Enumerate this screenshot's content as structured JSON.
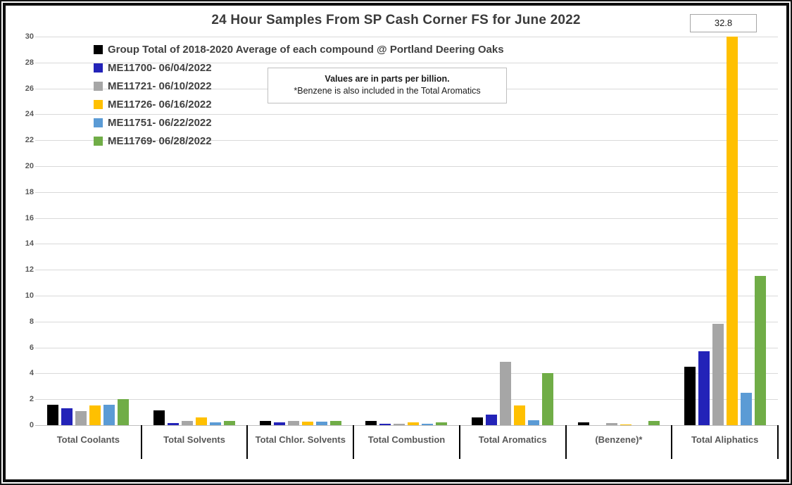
{
  "title": "24 Hour Samples From SP Cash Corner FS for June 2022",
  "note": {
    "line1": "Values are in parts per billion.",
    "line2": "*Benzene is also included in the Total Aromatics"
  },
  "annotation": {
    "label": "32.8",
    "category": "Total Aliphatics",
    "series": "ME11726- 06/16/2022"
  },
  "colors": {
    "grid": "#d9d9d9",
    "axis": "#bfbfbf",
    "separator": "#000000",
    "text_primary": "#404040",
    "text_secondary": "#595959"
  },
  "chart_data": {
    "type": "bar",
    "title": "24 Hour Samples From SP Cash Corner FS for June 2022",
    "categories": [
      "Total Coolants",
      "Total Solvents",
      "Total Chlor. Solvents",
      "Total Combustion",
      "Total Aromatics",
      "(Benzene)*",
      "Total Aliphatics"
    ],
    "series": [
      {
        "name": "Group Total of 2018-2020 Average of each compound @ Portland Deering Oaks",
        "color": "#000000",
        "values": [
          1.6,
          1.15,
          0.35,
          0.3,
          0.6,
          0.2,
          4.5
        ]
      },
      {
        "name": "ME11700- 06/04/2022",
        "color": "#2323b8",
        "values": [
          1.3,
          0.15,
          0.2,
          0.1,
          0.8,
          0,
          5.7
        ]
      },
      {
        "name": "ME11721- 06/10/2022",
        "color": "#a6a6a6",
        "values": [
          1.1,
          0.3,
          0.35,
          0.1,
          4.9,
          0.15,
          7.8
        ]
      },
      {
        "name": "ME11726- 06/16/2022",
        "color": "#ffc000",
        "values": [
          1.5,
          0.6,
          0.25,
          0.2,
          1.5,
          0.08,
          32.8
        ]
      },
      {
        "name": "ME11751- 06/22/2022",
        "color": "#5b9bd5",
        "values": [
          1.6,
          0.2,
          0.25,
          0.1,
          0.4,
          0,
          2.5
        ]
      },
      {
        "name": "ME11769- 06/28/2022",
        "color": "#70ad47",
        "values": [
          2.0,
          0.3,
          0.3,
          0.2,
          4.0,
          0.3,
          11.5
        ]
      }
    ],
    "ylim": [
      0,
      30
    ],
    "y_tick_step": 2,
    "y_ticks": [
      0,
      2,
      4,
      6,
      8,
      10,
      12,
      14,
      16,
      18,
      20,
      22,
      24,
      26,
      28,
      30
    ],
    "xlabel": "",
    "ylabel": "",
    "grid": true,
    "legend_position": "top-left",
    "annotations": [
      {
        "text": "32.8",
        "category": "Total Aliphatics",
        "series": "ME11726- 06/16/2022",
        "note": "bar clipped at axis max 30"
      }
    ]
  }
}
